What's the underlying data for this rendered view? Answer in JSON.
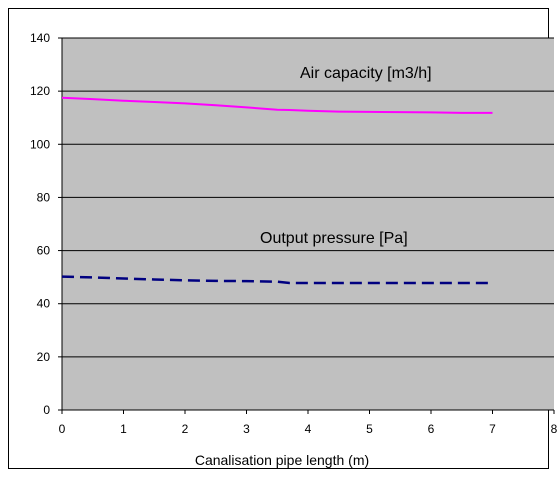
{
  "chart_data": {
    "type": "line",
    "title": "",
    "xlabel": "Canalisation pipe length (m)",
    "ylabel": "",
    "xlim": [
      0,
      8
    ],
    "ylim": [
      0,
      140
    ],
    "xticks": [
      "0",
      "1",
      "2",
      "3",
      "4",
      "5",
      "6",
      "7",
      "8"
    ],
    "yticks": [
      "0",
      "20",
      "40",
      "60",
      "80",
      "100",
      "120",
      "140"
    ],
    "grid": true,
    "plot_background": "#C0C0C0",
    "series": [
      {
        "name": "Air capacity  [m3/h]",
        "color": "#FF00FF",
        "style": "solid",
        "x": [
          0,
          0.5,
          1,
          1.5,
          2,
          2.5,
          3,
          3.5,
          3.7,
          4,
          4.5,
          5,
          5.5,
          6,
          6.5,
          7
        ],
        "y": [
          117.5,
          117,
          116.4,
          115.9,
          115.4,
          114.7,
          113.9,
          113,
          112.9,
          112.6,
          112.3,
          112.2,
          112.1,
          112,
          111.8,
          111.8
        ]
      },
      {
        "name": "Output pressure [Pa]",
        "color": "#000080",
        "style": "dashed",
        "x": [
          0,
          0.5,
          1,
          1.5,
          2,
          2.5,
          3,
          3.5,
          3.7,
          4,
          4.5,
          5,
          5.5,
          6,
          6.5,
          7
        ],
        "y": [
          50.2,
          49.9,
          49.5,
          49.1,
          48.8,
          48.6,
          48.5,
          48.3,
          47.8,
          47.8,
          47.8,
          47.8,
          47.8,
          47.8,
          47.8,
          47.8
        ]
      }
    ]
  }
}
